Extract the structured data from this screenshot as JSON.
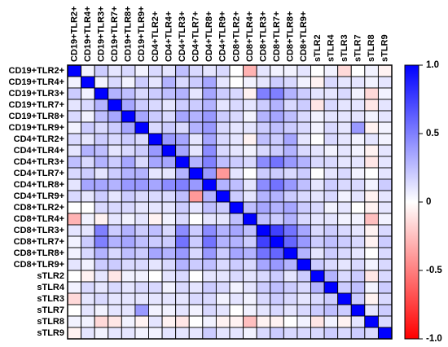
{
  "chart_data": {
    "type": "heatmap",
    "title": "",
    "xlabel": "",
    "ylabel": "",
    "row_labels": [
      "CD19+TLR2+",
      "CD19+TLR4+",
      "CD19+TLR3+",
      "CD19+TLR7+",
      "CD19+TLR8+",
      "CD19+TLR9+",
      "CD4+TLR2+",
      "CD4+TLR4+",
      "CD4+TLR3+",
      "CD4+TLR7+",
      "CD4+TLR8+",
      "CD4+TLR9+",
      "CD8+TLR2+",
      "CD8+TLR4+",
      "CD8+TLR3+",
      "CD8+TLR7+",
      "CD8+TLR8+",
      "CD8+TLR9+",
      "sTLR2",
      "sTLR4",
      "sTLR3",
      "sTLR7",
      "sTLR8",
      "sTLR9"
    ],
    "col_labels": [
      "CD19+TLR2+",
      "CD19+TLR4+",
      "CD19+TLR3+",
      "CD19+TLR7+",
      "CD19+TLR8+",
      "CD19+TLR9+",
      "CD4+TLR2+",
      "CD4+TLR4+",
      "CD4+TLR3+",
      "CD4+TLR7+",
      "CD4+TLR8+",
      "CD4+TLR9+",
      "CD8+TLR2+",
      "CD8+TLR4+",
      "CD8+TLR3+",
      "CD8+TLR7+",
      "CD8+TLR8+",
      "CD8+TLR9+",
      "sTLR2",
      "sTLR4",
      "sTLR3",
      "sTLR7",
      "sTLR8",
      "sTLR9"
    ],
    "values": [
      [
        1.0,
        0.05,
        0.2,
        0.1,
        0.15,
        0.05,
        0.15,
        0.1,
        0.25,
        0.15,
        0.1,
        0.15,
        0.0,
        -0.3,
        0.1,
        0.05,
        0.05,
        0.1,
        0.0,
        0.05,
        -0.15,
        0.0,
        0.05,
        -0.05
      ],
      [
        0.05,
        1.0,
        0.05,
        0.15,
        0.05,
        0.2,
        0.1,
        0.3,
        0.15,
        0.2,
        0.35,
        0.1,
        0.0,
        0.05,
        0.1,
        0.2,
        0.15,
        0.05,
        -0.05,
        0.15,
        0.1,
        0.1,
        0.05,
        0.1
      ],
      [
        0.2,
        0.05,
        1.0,
        0.3,
        0.25,
        0.15,
        0.2,
        0.25,
        0.3,
        0.1,
        0.35,
        0.2,
        0.15,
        -0.05,
        0.5,
        0.5,
        0.3,
        0.2,
        0.1,
        0.1,
        0.15,
        0.05,
        -0.15,
        0.05
      ],
      [
        0.1,
        0.15,
        0.3,
        1.0,
        0.35,
        0.2,
        0.15,
        0.1,
        0.2,
        0.2,
        0.3,
        0.1,
        0.15,
        0.1,
        0.2,
        0.3,
        0.15,
        0.2,
        -0.1,
        0.15,
        0.1,
        0.1,
        -0.1,
        0.1
      ],
      [
        0.15,
        0.05,
        0.25,
        0.35,
        1.0,
        0.35,
        0.2,
        0.15,
        0.35,
        0.3,
        0.4,
        0.2,
        0.15,
        0.05,
        0.3,
        0.35,
        0.25,
        0.15,
        0.05,
        0.1,
        0.1,
        0.1,
        0.05,
        0.1
      ],
      [
        0.05,
        0.2,
        0.15,
        0.2,
        0.35,
        1.0,
        0.15,
        0.2,
        0.15,
        0.3,
        0.4,
        0.15,
        0.1,
        0.1,
        0.2,
        0.25,
        0.2,
        0.15,
        0.05,
        0.15,
        0.1,
        0.4,
        -0.05,
        0.05
      ],
      [
        0.15,
        0.1,
        0.2,
        0.15,
        0.2,
        0.15,
        1.0,
        0.4,
        0.35,
        0.1,
        0.35,
        0.15,
        0.1,
        -0.05,
        0.25,
        0.2,
        0.35,
        0.1,
        0.0,
        0.15,
        0.1,
        0.05,
        0.1,
        0.05
      ],
      [
        0.1,
        0.3,
        0.25,
        0.1,
        0.15,
        0.2,
        0.4,
        1.0,
        0.35,
        0.1,
        0.45,
        0.15,
        0.1,
        0.05,
        0.15,
        0.2,
        0.3,
        0.15,
        0.1,
        0.05,
        0.1,
        0.05,
        -0.05,
        0.1
      ],
      [
        0.25,
        0.15,
        0.3,
        0.2,
        0.35,
        0.15,
        0.35,
        0.35,
        1.0,
        0.3,
        0.5,
        0.25,
        0.2,
        0.15,
        0.45,
        0.55,
        0.4,
        0.3,
        0.15,
        0.15,
        0.1,
        0.1,
        -0.1,
        0.1
      ],
      [
        0.15,
        0.2,
        0.1,
        0.2,
        0.3,
        0.3,
        0.1,
        0.1,
        0.3,
        1.0,
        0.4,
        -0.4,
        0.1,
        0.0,
        0.2,
        0.2,
        0.15,
        0.2,
        0.0,
        0.1,
        0.15,
        0.05,
        0.0,
        0.1
      ],
      [
        0.1,
        0.35,
        0.35,
        0.3,
        0.4,
        0.4,
        0.35,
        0.45,
        0.5,
        0.4,
        1.0,
        0.3,
        0.25,
        0.1,
        0.45,
        0.55,
        0.4,
        0.25,
        0.1,
        0.2,
        0.15,
        0.15,
        0.05,
        0.2
      ],
      [
        0.15,
        0.1,
        0.2,
        0.1,
        0.2,
        0.15,
        0.15,
        0.15,
        0.25,
        -0.4,
        0.3,
        1.0,
        0.2,
        0.1,
        0.3,
        0.3,
        0.2,
        0.15,
        0.1,
        0.15,
        0.05,
        0.1,
        -0.05,
        0.1
      ],
      [
        0.0,
        0.0,
        0.15,
        0.15,
        0.15,
        0.1,
        0.1,
        0.1,
        0.2,
        0.1,
        0.25,
        0.2,
        1.0,
        0.25,
        0.35,
        0.3,
        0.35,
        0.2,
        0.15,
        0.05,
        0.1,
        0.0,
        -0.05,
        0.1
      ],
      [
        -0.3,
        0.05,
        -0.05,
        0.1,
        0.05,
        0.1,
        -0.05,
        0.05,
        0.15,
        0.0,
        0.1,
        0.1,
        0.25,
        1.0,
        0.25,
        0.2,
        0.3,
        0.15,
        0.1,
        0.1,
        0.05,
        0.05,
        -0.25,
        0.05
      ],
      [
        0.1,
        0.1,
        0.5,
        0.2,
        0.3,
        0.2,
        0.25,
        0.15,
        0.45,
        0.2,
        0.45,
        0.3,
        0.35,
        0.25,
        1.0,
        0.75,
        0.55,
        0.35,
        0.15,
        0.2,
        0.15,
        0.1,
        -0.05,
        0.15
      ],
      [
        0.05,
        0.2,
        0.5,
        0.3,
        0.35,
        0.25,
        0.2,
        0.2,
        0.55,
        0.2,
        0.55,
        0.3,
        0.3,
        0.2,
        0.75,
        1.0,
        0.6,
        0.4,
        0.2,
        0.25,
        0.2,
        0.15,
        -0.05,
        0.2
      ],
      [
        0.05,
        0.15,
        0.3,
        0.15,
        0.25,
        0.2,
        0.35,
        0.3,
        0.4,
        0.15,
        0.4,
        0.2,
        0.35,
        0.3,
        0.55,
        0.6,
        1.0,
        0.3,
        0.1,
        0.2,
        0.15,
        0.1,
        0.0,
        0.15
      ],
      [
        0.1,
        0.05,
        0.2,
        0.2,
        0.15,
        0.15,
        0.1,
        0.15,
        0.3,
        0.2,
        0.25,
        0.15,
        0.2,
        0.15,
        0.35,
        0.4,
        0.3,
        1.0,
        0.2,
        0.15,
        0.1,
        0.15,
        0.05,
        0.15
      ],
      [
        0.0,
        -0.05,
        0.1,
        -0.1,
        0.05,
        0.05,
        0.0,
        0.1,
        0.15,
        0.0,
        0.1,
        0.1,
        0.15,
        0.1,
        0.15,
        0.2,
        0.1,
        0.2,
        1.0,
        0.3,
        0.15,
        0.2,
        -0.1,
        0.15
      ],
      [
        0.05,
        0.15,
        0.1,
        0.15,
        0.1,
        0.15,
        0.15,
        0.05,
        0.15,
        0.1,
        0.2,
        0.15,
        0.05,
        0.1,
        0.2,
        0.25,
        0.2,
        0.15,
        0.3,
        1.0,
        0.2,
        0.25,
        0.05,
        0.2
      ],
      [
        -0.15,
        0.1,
        0.15,
        0.1,
        0.1,
        0.1,
        0.1,
        0.1,
        0.1,
        0.15,
        0.15,
        0.05,
        0.1,
        0.05,
        0.15,
        0.2,
        0.15,
        0.1,
        0.15,
        0.2,
        1.0,
        0.2,
        -0.05,
        0.15
      ],
      [
        0.0,
        0.1,
        0.05,
        0.1,
        0.1,
        0.4,
        0.05,
        0.05,
        0.1,
        0.05,
        0.15,
        0.1,
        0.0,
        0.05,
        0.1,
        0.15,
        0.1,
        0.15,
        0.2,
        0.25,
        0.2,
        1.0,
        0.1,
        0.2
      ],
      [
        0.05,
        0.05,
        -0.15,
        -0.1,
        0.05,
        -0.05,
        0.1,
        -0.05,
        -0.1,
        0.0,
        0.05,
        -0.05,
        -0.05,
        -0.25,
        -0.05,
        -0.05,
        0.0,
        0.05,
        -0.1,
        0.05,
        -0.05,
        0.1,
        1.0,
        0.15
      ],
      [
        -0.05,
        0.1,
        0.05,
        0.1,
        0.1,
        0.05,
        0.05,
        0.1,
        0.1,
        0.1,
        0.2,
        0.1,
        0.1,
        0.05,
        0.15,
        0.2,
        0.15,
        0.15,
        0.15,
        0.2,
        0.15,
        0.2,
        0.15,
        1.0
      ]
    ],
    "color_scale": {
      "range": [
        -1.0,
        1.0
      ],
      "low_color": "#ff0000",
      "mid_color": "#ffffff",
      "high_color": "#0000ff",
      "ticks": [
        {
          "value": 1.0,
          "label": "1.0"
        },
        {
          "value": 0.5,
          "label": "0.5"
        },
        {
          "value": 0.0,
          "label": "0"
        },
        {
          "value": -0.5,
          "label": "-0.5"
        },
        {
          "value": -1.0,
          "label": "-1.0"
        }
      ]
    },
    "grid": true
  }
}
